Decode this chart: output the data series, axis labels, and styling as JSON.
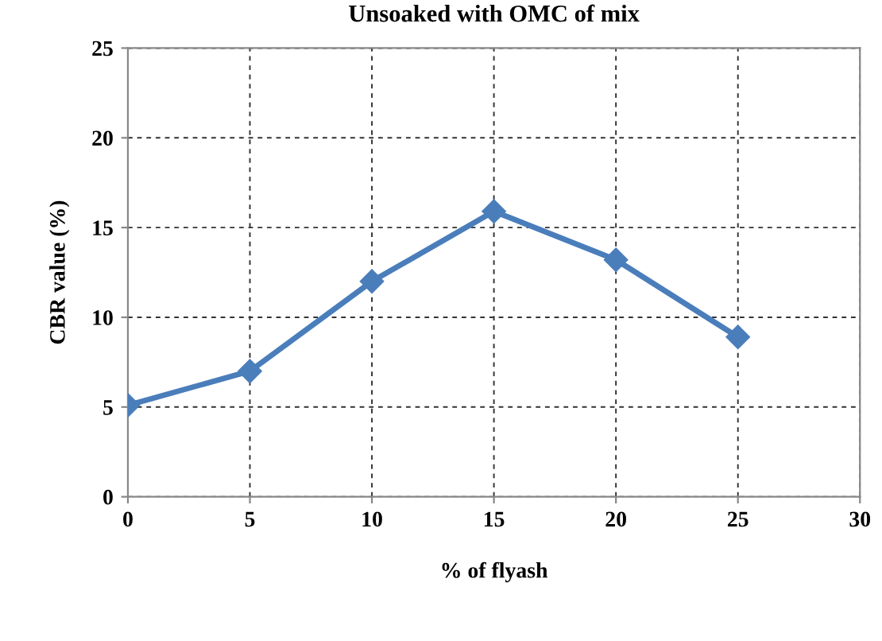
{
  "chart_data": {
    "type": "line",
    "title": "Unsoaked with OMC of mix",
    "xlabel": "% of flyash",
    "ylabel": "CBR value (%)",
    "x": [
      0,
      5,
      10,
      15,
      20,
      25
    ],
    "series": [
      {
        "color": "#4a7ebb",
        "values": [
          5.1,
          7.0,
          12.0,
          15.9,
          13.2,
          8.9
        ]
      }
    ],
    "xlim": [
      0,
      30
    ],
    "xticks": [
      0,
      5,
      10,
      15,
      20,
      25,
      30
    ],
    "ylim": [
      0,
      25
    ],
    "yticks": [
      0,
      5,
      10,
      15,
      20,
      25
    ],
    "grid": true,
    "marker": "diamond",
    "line_style": "solid",
    "legend": false
  }
}
